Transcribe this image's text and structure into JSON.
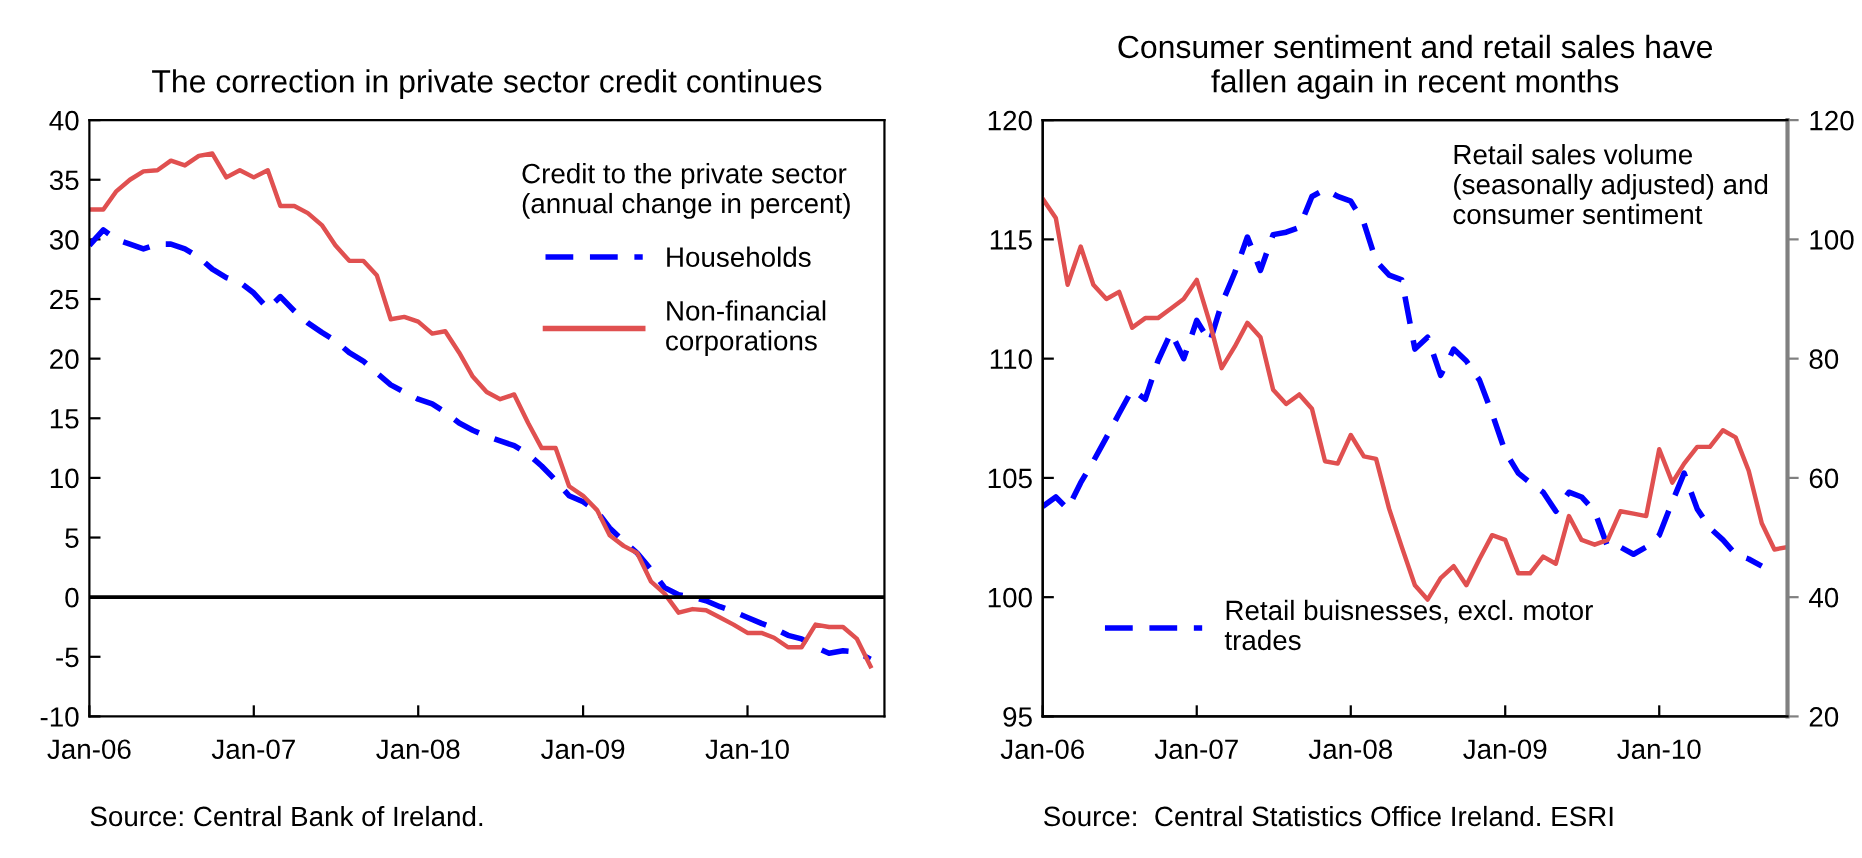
{
  "chart_data": [
    {
      "type": "line",
      "title": "The correction in private sector credit continues",
      "legend_title": "Credit to the private sector\n(annual change in percent)",
      "legend": "top right",
      "x": [
        "2006-01",
        "2006-02",
        "2006-03",
        "2006-04",
        "2006-05",
        "2006-06",
        "2006-07",
        "2006-08",
        "2006-09",
        "2006-10",
        "2006-11",
        "2006-12",
        "2007-01",
        "2007-02",
        "2007-03",
        "2007-04",
        "2007-05",
        "2007-06",
        "2007-07",
        "2007-08",
        "2007-09",
        "2007-10",
        "2007-11",
        "2007-12",
        "2008-01",
        "2008-02",
        "2008-03",
        "2008-04",
        "2008-05",
        "2008-06",
        "2008-07",
        "2008-08",
        "2008-09",
        "2008-10",
        "2008-11",
        "2008-12",
        "2009-01",
        "2009-02",
        "2009-03",
        "2009-04",
        "2009-05",
        "2009-06",
        "2009-07",
        "2009-08",
        "2009-09",
        "2009-10",
        "2009-11",
        "2009-12",
        "2010-01",
        "2010-02",
        "2010-03",
        "2010-04",
        "2010-05",
        "2010-06",
        "2010-07",
        "2010-08",
        "2010-09",
        "2010-10"
      ],
      "series": [
        {
          "name": "Households",
          "color": "#0000ff",
          "line_style": "dashed",
          "values": [
            29.5,
            30.8,
            30,
            29.6,
            29.2,
            29.6,
            29.6,
            29.2,
            28.5,
            27.5,
            26.8,
            26.4,
            25.5,
            24.2,
            25.2,
            24,
            23,
            22.2,
            21.5,
            20.5,
            19.8,
            18.8,
            17.8,
            17.2,
            16.6,
            16.2,
            15.5,
            14.6,
            14,
            13.5,
            13.1,
            12.7,
            12,
            11,
            9.8,
            8.5,
            8,
            7.2,
            5.8,
            4.7,
            3.7,
            2.3,
            0.8,
            0.2,
            0,
            -0.3,
            -0.8,
            -1.2,
            -1.7,
            -2.2,
            -2.6,
            -3.2,
            -3.5,
            -4.2,
            -4.7,
            -4.5,
            -4.6,
            -5.2
          ]
        },
        {
          "name": "Non-financial\ncorporations",
          "color": "#e05050",
          "line_style": "solid",
          "values": [
            32.5,
            32.5,
            34,
            35,
            35.7,
            35.8,
            36.6,
            36.2,
            37,
            37.2,
            35.2,
            35.8,
            35.2,
            35.8,
            32.8,
            32.8,
            32.2,
            31.2,
            29.5,
            28.2,
            28.2,
            27,
            23.3,
            23.5,
            23.1,
            22.1,
            22.3,
            20.5,
            18.5,
            17.2,
            16.6,
            17,
            14.6,
            12.5,
            12.5,
            9.3,
            8.5,
            7.3,
            5.2,
            4.3,
            3.7,
            1.3,
            0.3,
            -1.3,
            -1,
            -1.1,
            -1.7,
            -2.3,
            -3,
            -3,
            -3.4,
            -4.2,
            -4.2,
            -2.3,
            -2.5,
            -2.5,
            -3.5,
            -5.8
          ]
        }
      ],
      "xlim": [
        "2006-01",
        "2010-11"
      ],
      "xticks": [
        {
          "value": "2006-01",
          "label": "Jan-06"
        },
        {
          "value": "2007-01",
          "label": "Jan-07"
        },
        {
          "value": "2008-01",
          "label": "Jan-08"
        },
        {
          "value": "2009-01",
          "label": "Jan-09"
        },
        {
          "value": "2010-01",
          "label": "Jan-10"
        }
      ],
      "ylim": [
        -10,
        40
      ],
      "yticks": [
        -10,
        -5,
        0,
        5,
        10,
        15,
        20,
        25,
        30,
        35,
        40
      ],
      "ref_lines": [
        {
          "axis": "y",
          "value": 0,
          "color": "#000000"
        }
      ],
      "annotations": [
        "Source: Central Bank of Ireland."
      ]
    },
    {
      "type": "line",
      "title": "Consumer sentiment and retail sales have\nfallen again in recent months",
      "legend": "bottom left",
      "x": [
        "2006-01",
        "2006-02",
        "2006-03",
        "2006-04",
        "2006-05",
        "2006-06",
        "2006-07",
        "2006-08",
        "2006-09",
        "2006-10",
        "2006-11",
        "2006-12",
        "2007-01",
        "2007-02",
        "2007-03",
        "2007-04",
        "2007-05",
        "2007-06",
        "2007-07",
        "2007-08",
        "2007-09",
        "2007-10",
        "2007-11",
        "2007-12",
        "2008-01",
        "2008-02",
        "2008-03",
        "2008-04",
        "2008-05",
        "2008-06",
        "2008-07",
        "2008-08",
        "2008-09",
        "2008-10",
        "2008-11",
        "2008-12",
        "2009-01",
        "2009-02",
        "2009-03",
        "2009-04",
        "2009-05",
        "2009-06",
        "2009-07",
        "2009-08",
        "2009-09",
        "2009-10",
        "2009-11",
        "2009-12",
        "2010-01",
        "2010-02",
        "2010-03",
        "2010-04",
        "2010-05",
        "2010-06",
        "2010-07",
        "2010-08",
        "2010-09",
        "2010-10",
        "2010-11"
      ],
      "series": [
        {
          "name": "Retail buisnesses, excl. motor\ntrades",
          "color": "#0000ff",
          "line_style": "dashed",
          "values": [
            103.8,
            104.2,
            103.7,
            104.8,
            105.7,
            106.7,
            107.7,
            108.7,
            108.3,
            109.9,
            111.1,
            110,
            111.6,
            110.7,
            112.3,
            113.6,
            115.1,
            113.7,
            115.2,
            115.3,
            115.5,
            116.8,
            117.1,
            116.8,
            116.6,
            115.7,
            114.1,
            113.5,
            113.3,
            110.4,
            110.9,
            109.3,
            110.4,
            109.9,
            109.1,
            107.7,
            106.1,
            105.2,
            104.8,
            104.4,
            103.6,
            104.4,
            104.2,
            103.6,
            102.1,
            102.1,
            101.8,
            102.1,
            102.6,
            104,
            105.2,
            103.7,
            102.9,
            102.4,
            101.8,
            101.6,
            101.3,
            null,
            null
          ]
        },
        {
          "color": "#e05050",
          "line_style": "solid",
          "axis": "y2",
          "values": [
            106.8,
            103.6,
            92.4,
            98.8,
            92.4,
            90,
            91.2,
            85.2,
            86.8,
            86.8,
            88.4,
            90,
            93.2,
            86,
            78.4,
            82,
            86,
            83.6,
            74.8,
            72.4,
            74,
            71.6,
            62.8,
            62.4,
            67.2,
            63.6,
            63.2,
            54.8,
            48.4,
            42,
            39.6,
            43.2,
            45.2,
            42,
            46.4,
            50.4,
            49.6,
            44,
            44,
            46.8,
            45.6,
            53.6,
            49.6,
            48.8,
            49.6,
            54.4,
            54,
            53.6,
            64.8,
            59.2,
            62.4,
            65.2,
            65.2,
            68,
            66.8,
            61.2,
            52.4,
            48,
            48.4
          ]
        }
      ],
      "xlim": [
        "2006-01",
        "2010-11"
      ],
      "xticks": [
        {
          "value": "2006-01",
          "label": "Jan-06"
        },
        {
          "value": "2007-01",
          "label": "Jan-07"
        },
        {
          "value": "2008-01",
          "label": "Jan-08"
        },
        {
          "value": "2009-01",
          "label": "Jan-09"
        },
        {
          "value": "2010-01",
          "label": "Jan-10"
        }
      ],
      "ylim": [
        95,
        120
      ],
      "yticks": [
        95,
        100,
        105,
        110,
        115,
        120
      ],
      "y2lim": [
        20,
        120
      ],
      "y2ticks": [
        20,
        40,
        60,
        80,
        100,
        120
      ],
      "annotations": [
        "Retail sales volume\n(seasonally adjusted) and\nconsumer sentiment",
        "Source:  Central Statistics Office Ireland. ESRI"
      ]
    }
  ]
}
